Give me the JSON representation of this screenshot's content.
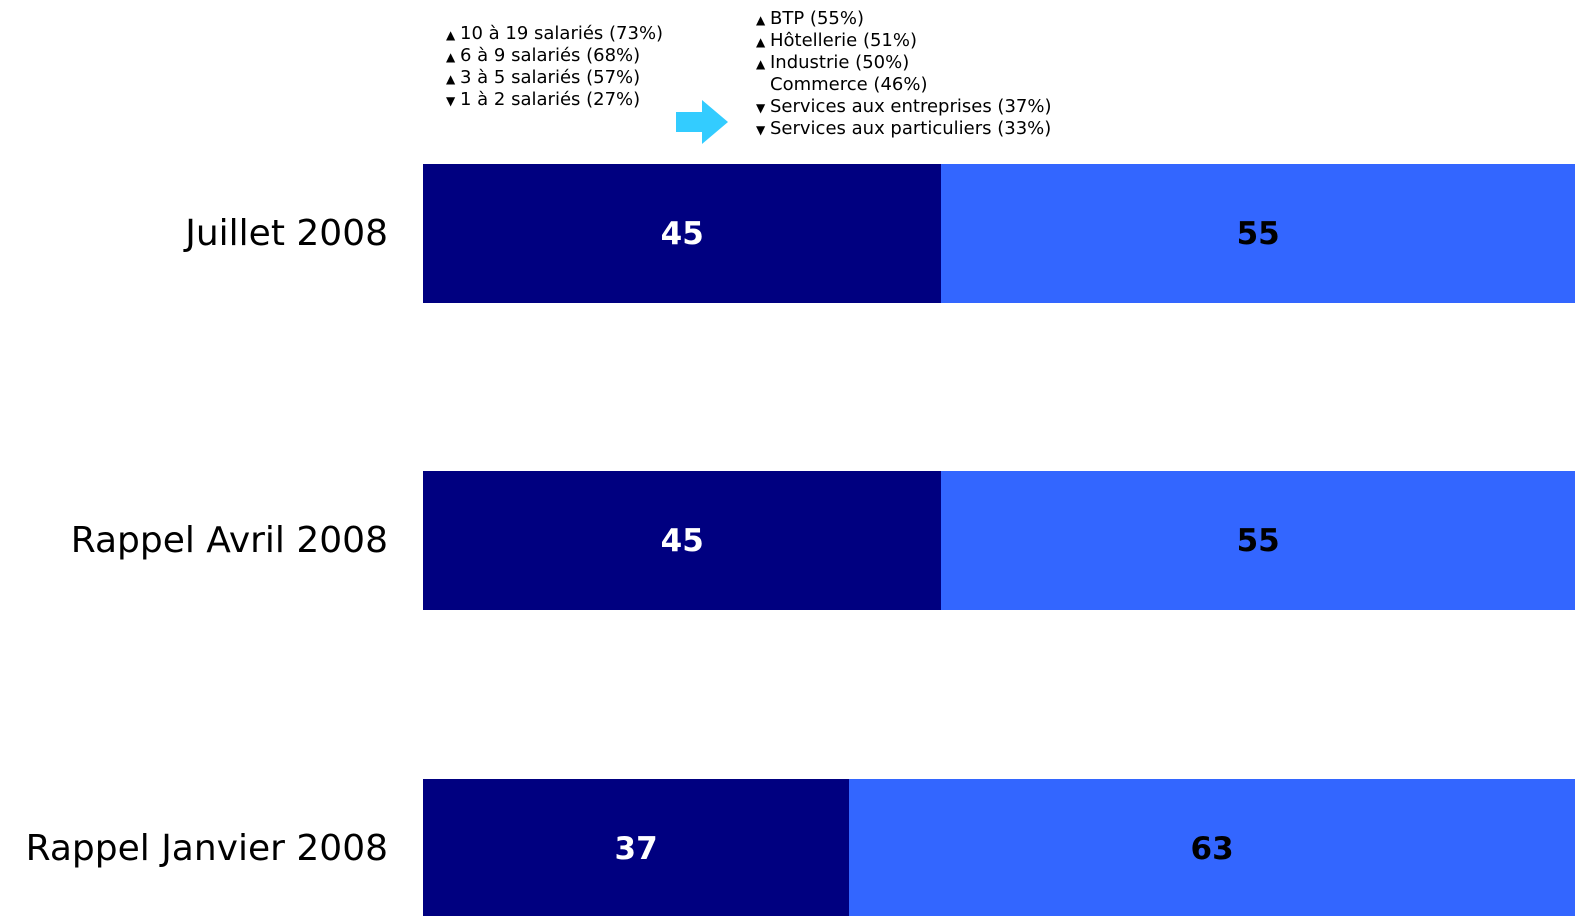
{
  "colors": {
    "series1": "#000080",
    "series2": "#3366ff",
    "arrow": "#33ccff"
  },
  "notes_left": [
    {
      "mark": "up-triangle",
      "text": "10 à 19 salariés (73%)"
    },
    {
      "mark": "up-triangle",
      "text": "6 à 9 salariés (68%)"
    },
    {
      "mark": "up-triangle",
      "text": "3 à 5 salariés (57%)"
    },
    {
      "mark": "down-triangle",
      "text": "1 à 2 salariés (27%)"
    }
  ],
  "notes_right": [
    {
      "mark": "up-triangle",
      "text": "BTP (55%)"
    },
    {
      "mark": "up-triangle",
      "text": "Hôtellerie (51%)"
    },
    {
      "mark": "up-triangle",
      "text": "Industrie (50%)"
    },
    {
      "mark": "none",
      "text": "Commerce (46%)"
    },
    {
      "mark": "down-triangle",
      "text": "Services aux entreprises (37%)"
    },
    {
      "mark": "down-triangle",
      "text": "Services aux particuliers (33%)"
    }
  ],
  "chart_data": {
    "type": "bar",
    "orientation": "horizontal-stacked",
    "categories": [
      "Juillet 2008",
      "Rappel Avril 2008",
      "Rappel Janvier 2008"
    ],
    "series": [
      {
        "values": [
          45,
          45,
          37
        ]
      },
      {
        "values": [
          55,
          55,
          63
        ]
      }
    ],
    "xlim": [
      0,
      100
    ]
  }
}
